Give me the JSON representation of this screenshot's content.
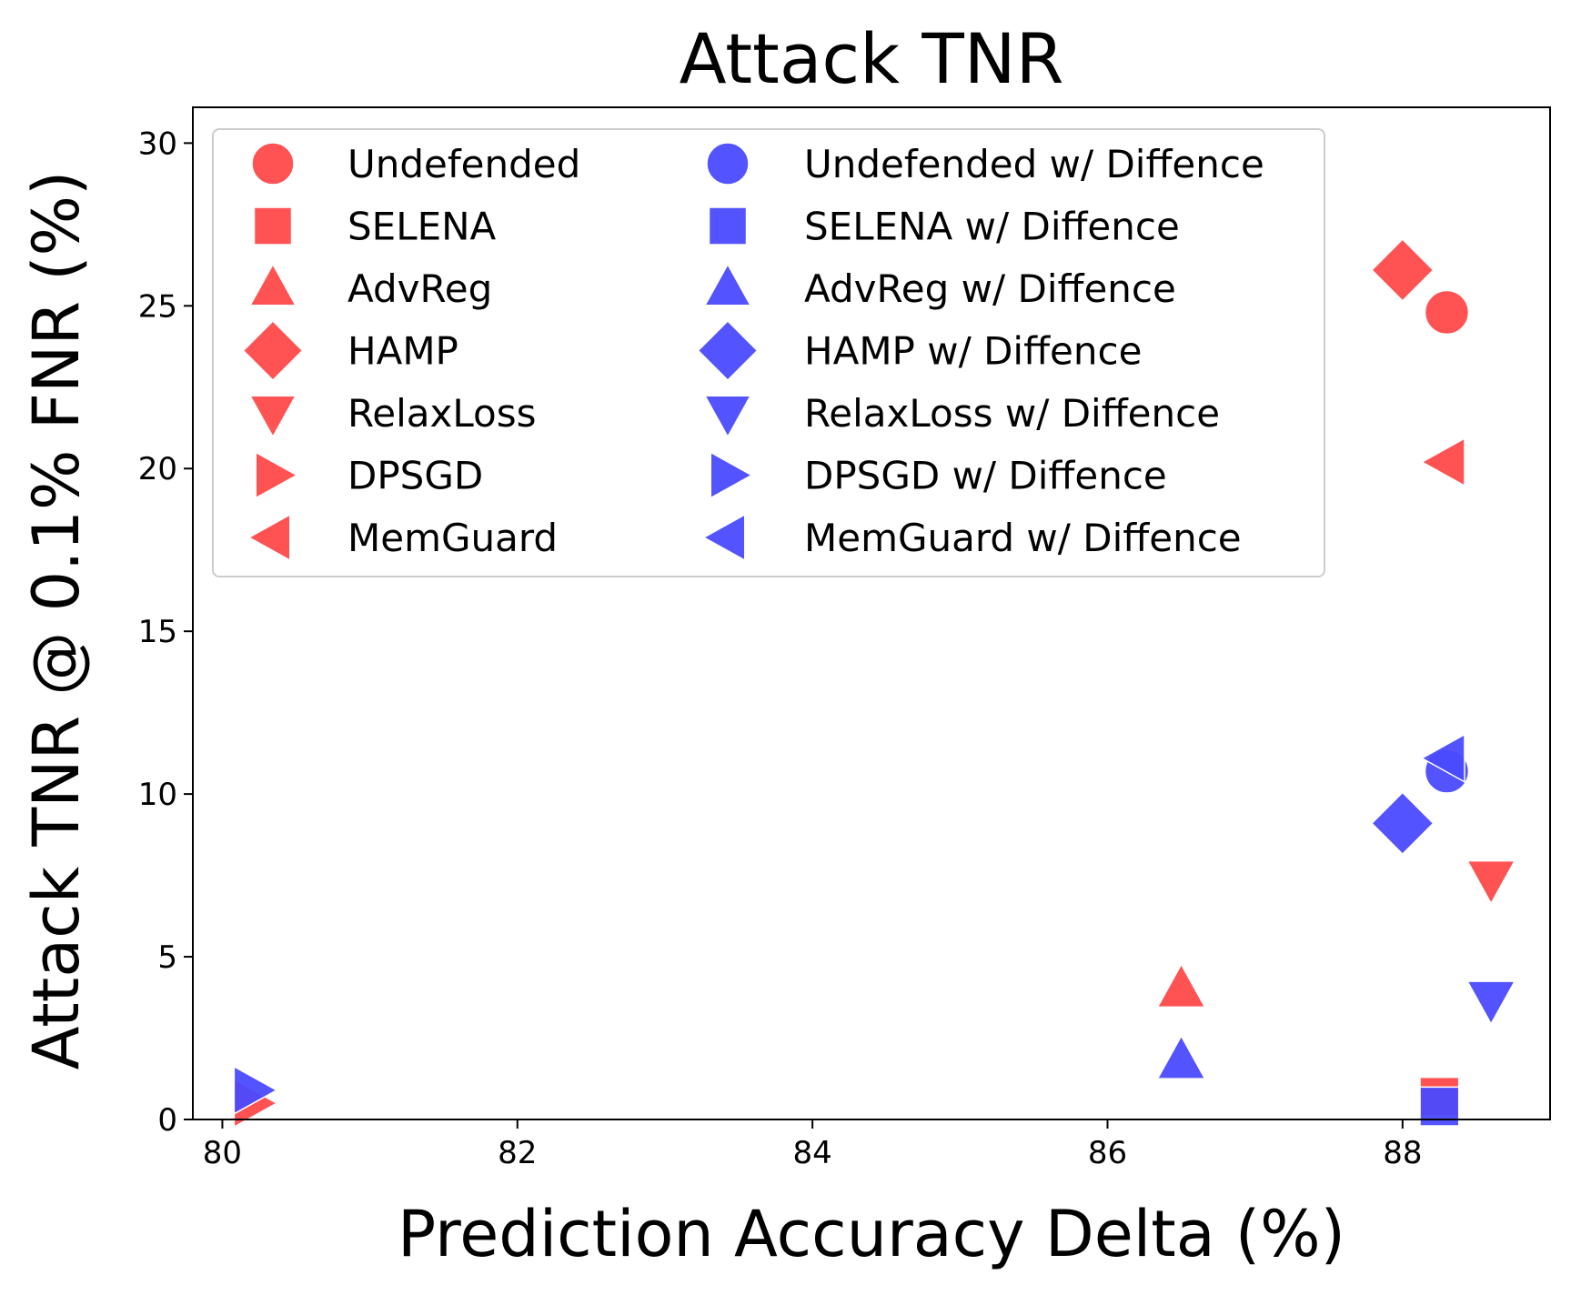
{
  "chart_data": {
    "type": "scatter",
    "title": "Attack TNR",
    "xlabel": "Prediction Accuracy Delta (%)",
    "ylabel": "Attack TNR @ 0.1% FNR (%)",
    "xlim": [
      79.8,
      89.0
    ],
    "ylim": [
      0,
      31.1
    ],
    "xticks": [
      80,
      82,
      84,
      86,
      88
    ],
    "yticks": [
      0,
      5,
      10,
      15,
      20,
      25,
      30
    ],
    "grid": false,
    "legend_position": "top-left",
    "legend_columns": 2,
    "colors": {
      "undefended": "#ff4a4a",
      "diffence": "#4a4aff",
      "marker_edge": "#ffffff"
    },
    "series": [
      {
        "name": "Undefended",
        "marker": "circle",
        "color": "#ff4a4a",
        "x": [
          88.3
        ],
        "y": [
          24.8
        ]
      },
      {
        "name": "SELENA",
        "marker": "square",
        "color": "#ff4a4a",
        "x": [
          88.25
        ],
        "y": [
          0.7
        ]
      },
      {
        "name": "AdvReg",
        "marker": "triangle-up",
        "color": "#ff4a4a",
        "x": [
          86.5
        ],
        "y": [
          4.0
        ]
      },
      {
        "name": "HAMP",
        "marker": "diamond",
        "color": "#ff4a4a",
        "x": [
          88.0
        ],
        "y": [
          26.1
        ]
      },
      {
        "name": "RelaxLoss",
        "marker": "triangle-down",
        "color": "#ff4a4a",
        "x": [
          88.6
        ],
        "y": [
          7.4
        ]
      },
      {
        "name": "DPSGD",
        "marker": "triangle-right",
        "color": "#ff4a4a",
        "x": [
          80.2
        ],
        "y": [
          0.5
        ]
      },
      {
        "name": "MemGuard",
        "marker": "triangle-left",
        "color": "#ff4a4a",
        "x": [
          88.3
        ],
        "y": [
          20.2
        ]
      },
      {
        "name": "Undefended w/ Diffence",
        "marker": "circle",
        "color": "#4a4aff",
        "x": [
          88.3
        ],
        "y": [
          10.7
        ]
      },
      {
        "name": "SELENA w/ Diffence",
        "marker": "square",
        "color": "#4a4aff",
        "x": [
          88.25
        ],
        "y": [
          0.4
        ]
      },
      {
        "name": "AdvReg w/ Diffence",
        "marker": "triangle-up",
        "color": "#4a4aff",
        "x": [
          86.5
        ],
        "y": [
          1.8
        ]
      },
      {
        "name": "HAMP w/ Diffence",
        "marker": "diamond",
        "color": "#4a4aff",
        "x": [
          88.0
        ],
        "y": [
          9.1
        ]
      },
      {
        "name": "RelaxLoss w/ Diffence",
        "marker": "triangle-down",
        "color": "#4a4aff",
        "x": [
          88.6
        ],
        "y": [
          3.7
        ]
      },
      {
        "name": "DPSGD w/ Diffence",
        "marker": "triangle-right",
        "color": "#4a4aff",
        "x": [
          80.2
        ],
        "y": [
          0.9
        ]
      },
      {
        "name": "MemGuard w/ Diffence",
        "marker": "triangle-left",
        "color": "#4a4aff",
        "x": [
          88.3
        ],
        "y": [
          11.1
        ]
      }
    ]
  }
}
